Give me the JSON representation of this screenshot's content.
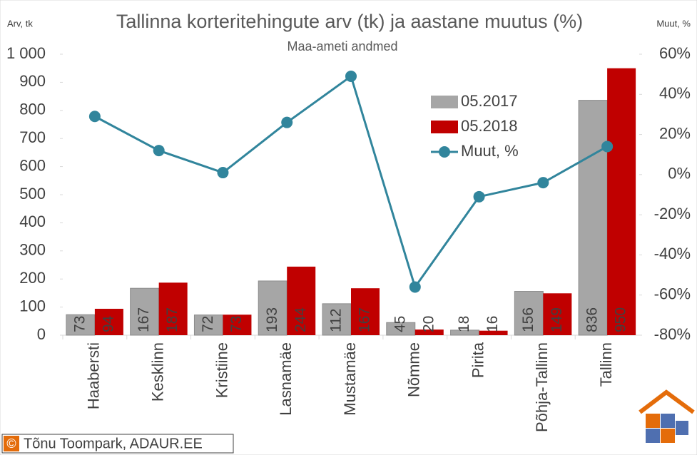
{
  "chart_data": {
    "type": "bar-line",
    "title": "Tallinna korteritehingute arv (tk) ja aastane muutus (%)",
    "subtitle": "Maa-ameti andmed",
    "y_axis_label": "Arv, tk",
    "y2_axis_label": "Muut, %",
    "credit_symbol": "©",
    "credit": "Tõnu Toompark, ADAUR.EE",
    "categories": [
      "Haabersti",
      "Kesklinn",
      "Kristiine",
      "Lasnamäe",
      "Mustamäe",
      "Nõmme",
      "Pirita",
      "Põhja-Tallinn",
      "Tallinn"
    ],
    "series": [
      {
        "name": "05.2017",
        "kind": "bar",
        "color": "#a6a6a6",
        "values": [
          73,
          167,
          72,
          193,
          112,
          45,
          18,
          156,
          836
        ]
      },
      {
        "name": "05.2018",
        "kind": "bar",
        "color": "#c00000",
        "values": [
          94,
          187,
          73,
          244,
          167,
          20,
          16,
          149,
          950
        ]
      },
      {
        "name": "Muut, %",
        "kind": "line",
        "axis": "y2",
        "color": "#31859c",
        "values": [
          29,
          12,
          1,
          26,
          49,
          -56,
          -11,
          -4,
          14
        ]
      }
    ],
    "ylim": [
      0,
      1000
    ],
    "yticks": [
      0,
      100,
      200,
      300,
      400,
      500,
      600,
      700,
      800,
      900,
      {
        "value": 1000,
        "label": "1 000"
      }
    ],
    "y2lim": [
      -80,
      60
    ],
    "y2ticks": [
      {
        "value": -80,
        "label": "-80%"
      },
      {
        "value": -60,
        "label": "-60%"
      },
      {
        "value": -40,
        "label": "-40%"
      },
      {
        "value": -20,
        "label": "-20%"
      },
      {
        "value": 0,
        "label": "0%"
      },
      {
        "value": 20,
        "label": "20%"
      },
      {
        "value": 40,
        "label": "40%"
      },
      {
        "value": 60,
        "label": "60%"
      }
    ],
    "grid": false
  }
}
